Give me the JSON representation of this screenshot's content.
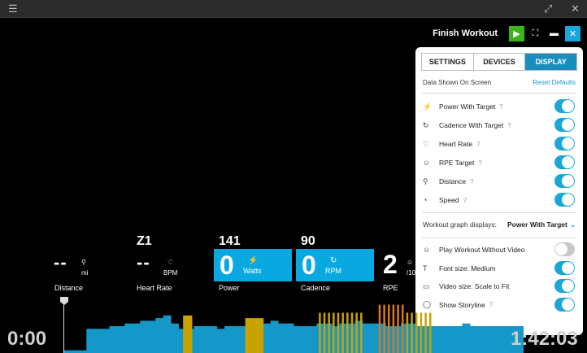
{
  "window": {
    "menu_icon": "☰",
    "fullscreen_icon": "⤢",
    "close_icon": "✕"
  },
  "topbar": {
    "finish_label": "Finish Workout",
    "play_icon": "▶",
    "expand_icon": "⛶",
    "display_icon": "▬",
    "close_icon": "✕"
  },
  "panel": {
    "tabs": [
      {
        "label": "SETTINGS"
      },
      {
        "label": "DEVICES"
      },
      {
        "label": "DISPLAY"
      }
    ],
    "active_tab": "DISPLAY",
    "section_title": "Data Shown On Screen",
    "reset_label": "Reset Defaults",
    "data_rows": [
      {
        "icon": "⚡",
        "label": "Power With Target",
        "info": "?",
        "enabled": true
      },
      {
        "icon": "↻",
        "label": "Cadence With Target",
        "info": "?",
        "enabled": true
      },
      {
        "icon": "♡",
        "label": "Heart Rate",
        "info": "?",
        "enabled": true
      },
      {
        "icon": "☺",
        "label": "RPE Target",
        "info": "?",
        "enabled": true
      },
      {
        "icon": "⚲",
        "label": "Distance",
        "info": "?",
        "enabled": true
      },
      {
        "icon": "◔",
        "label": "Speed",
        "info": "?",
        "enabled": true
      }
    ],
    "graph_label": "Workout graph displays:",
    "graph_value": "Power With Target",
    "graph_chevron": "⌄",
    "option_rows": [
      {
        "icon": "☺",
        "label": "Play Workout Without Video",
        "info": "",
        "enabled": false
      },
      {
        "icon": "T",
        "label": "Font size: Medium",
        "info": "",
        "enabled": true
      },
      {
        "icon": "▭",
        "label": "Video size: Scale to Fit",
        "info": "",
        "enabled": true
      },
      {
        "icon": "◯",
        "label": "Show Storyline",
        "info": "?",
        "enabled": true
      }
    ]
  },
  "metrics": {
    "distance": {
      "value": "--",
      "unit": "mi",
      "label": "Distance",
      "icon": "⚲"
    },
    "heart_rate": {
      "zone": "Z1",
      "value": "--",
      "unit": "BPM",
      "label": "Heart Rate",
      "icon": "♡"
    },
    "power": {
      "target": "141",
      "value": "0",
      "unit": "Watts",
      "label": "Power",
      "icon": "⚡"
    },
    "cadence": {
      "target": "90",
      "value": "0",
      "unit": "RPM",
      "label": "Cadence",
      "icon": "↻"
    },
    "rpe": {
      "value": "2",
      "unit": "/10",
      "label": "RPE",
      "icon": "☺"
    }
  },
  "timer": {
    "elapsed": "0:00",
    "remaining": "1:42:03"
  },
  "colors": {
    "accent": "#0aa8e0",
    "play": "#3ab41a",
    "graph_blue": "#1497c9",
    "graph_yellow": "#c9a200",
    "graph_orange": "#d97a1a"
  },
  "workout_graph": {
    "blue_heights": [
      0.05,
      0.05,
      0.05,
      0.45,
      0.45,
      0.45,
      0.5,
      0.5,
      0.55,
      0.55,
      0.6,
      0.6,
      0.65,
      0.7,
      0.55,
      0.45,
      0.45,
      0.5,
      0.5,
      0.5,
      0.45,
      0.5,
      0.5,
      0.5,
      0.55,
      0.55,
      0.55,
      0.6,
      0.55,
      0.55,
      0.5,
      0.5,
      0.5,
      0.55,
      0.55,
      0.5,
      0.55,
      0.55,
      0.6,
      0.55,
      0.55,
      0.55,
      0.5,
      0.5,
      0.55,
      0.55,
      0.5,
      0.5,
      0.5,
      0.5,
      0.5,
      0.5,
      0.55,
      0.5,
      0.5,
      0.5,
      0.5,
      0.5,
      0.5,
      0.5
    ],
    "yellow_bars": [
      {
        "at": 0.26,
        "width": 0.02,
        "height": 0.7
      },
      {
        "at": 0.395,
        "width": 0.04,
        "height": 0.65
      }
    ],
    "yellow_thin": [
      0.555,
      0.565,
      0.575,
      0.585,
      0.595,
      0.605,
      0.615,
      0.625,
      0.635,
      0.645
    ],
    "orange_thin": [
      0.685,
      0.695,
      0.705,
      0.715,
      0.725,
      0.735,
      0.745,
      0.755,
      0.765,
      0.775,
      0.785,
      0.795
    ],
    "orange_tall_height": 0.9,
    "thin_height": 0.75
  }
}
